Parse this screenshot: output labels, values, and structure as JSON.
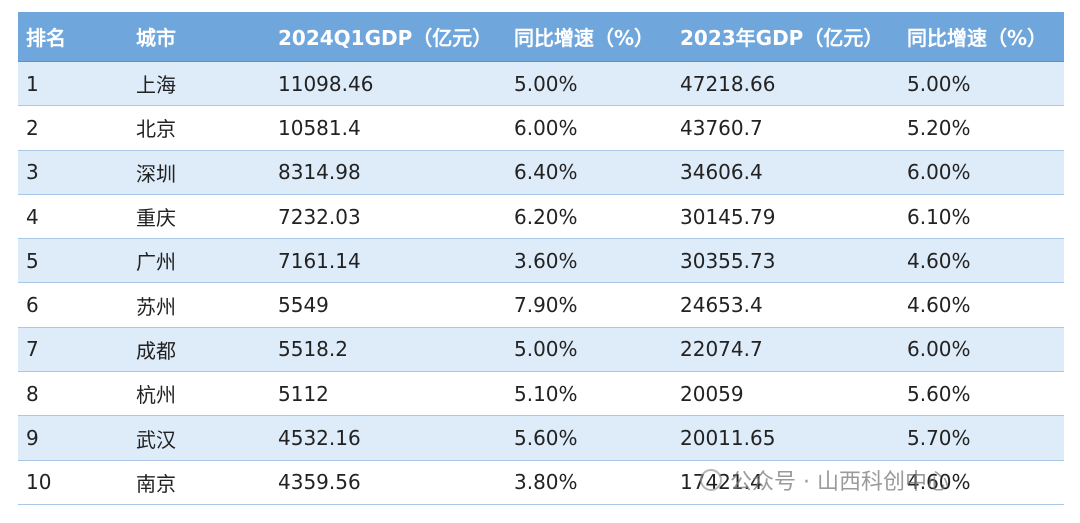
{
  "table": {
    "header": [
      "排名",
      "城市",
      "2024Q1GDP（亿元）",
      "同比增速（%）",
      "2023年GDP（亿元）",
      "同比增速（%）"
    ],
    "rows": [
      [
        "1",
        "上海",
        "11098.46",
        "5.00%",
        "47218.66",
        "5.00%"
      ],
      [
        "2",
        "北京",
        "10581.4",
        "6.00%",
        "43760.7",
        "5.20%"
      ],
      [
        "3",
        "深圳",
        "8314.98",
        "6.40%",
        "34606.4",
        "6.00%"
      ],
      [
        "4",
        "重庆",
        "7232.03",
        "6.20%",
        "30145.79",
        "6.10%"
      ],
      [
        "5",
        "广州",
        "7161.14",
        "3.60%",
        "30355.73",
        "4.60%"
      ],
      [
        "6",
        "苏州",
        "5549",
        "7.90%",
        "24653.4",
        "4.60%"
      ],
      [
        "7",
        "成都",
        "5518.2",
        "5.00%",
        "22074.7",
        "6.00%"
      ],
      [
        "8",
        "杭州",
        "5112",
        "5.10%",
        "20059",
        "5.60%"
      ],
      [
        "9",
        "武汉",
        "4532.16",
        "5.60%",
        "20011.65",
        "5.70%"
      ],
      [
        "10",
        "南京",
        "4359.56",
        "3.80%",
        "17421.4",
        "4.60%"
      ]
    ]
  },
  "watermark": "公众号 · 山西科创中心"
}
